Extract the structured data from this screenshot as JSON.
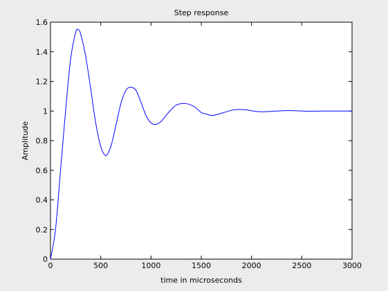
{
  "chart_data": {
    "type": "line",
    "title": "Step response",
    "xlabel": "time in microseconds",
    "ylabel": "Amplitude",
    "xlim": [
      0,
      3000
    ],
    "ylim": [
      0,
      1.6
    ],
    "xticks": [
      0,
      500,
      1000,
      1500,
      2000,
      2500,
      3000
    ],
    "yticks": [
      0,
      0.2,
      0.4,
      0.6,
      0.8,
      1,
      1.2,
      1.4,
      1.6
    ],
    "grid": false,
    "line_color": "#0000ff",
    "series": [
      {
        "x": [
          0,
          50,
          100,
          150,
          200,
          250,
          275,
          300,
          350,
          400,
          450,
          500,
          550,
          600,
          650,
          700,
          750,
          800,
          850,
          900,
          950,
          1000,
          1050,
          1100,
          1150,
          1200,
          1250,
          1300,
          1350,
          1400,
          1450,
          1500,
          1550,
          1600,
          1650,
          1700,
          1750,
          1800,
          1850,
          1900,
          1950,
          2000,
          2050,
          2100,
          2150,
          2200,
          2250,
          2300,
          2350,
          2400,
          2450,
          2500,
          2550,
          2600,
          2700,
          2800,
          2900,
          3000
        ],
        "y": [
          0,
          0.2,
          0.6,
          1.0,
          1.35,
          1.53,
          1.55,
          1.52,
          1.37,
          1.15,
          0.92,
          0.76,
          0.7,
          0.76,
          0.9,
          1.05,
          1.14,
          1.16,
          1.14,
          1.06,
          0.97,
          0.92,
          0.91,
          0.93,
          0.97,
          1.01,
          1.04,
          1.05,
          1.05,
          1.04,
          1.02,
          0.99,
          0.98,
          0.97,
          0.975,
          0.985,
          0.995,
          1.005,
          1.01,
          1.01,
          1.008,
          1.002,
          0.997,
          0.995,
          0.996,
          0.998,
          1.0,
          1.002,
          1.003,
          1.003,
          1.002,
          1.0,
          0.999,
          0.999,
          1.0,
          1.0,
          1.0,
          1.0
        ]
      }
    ]
  }
}
